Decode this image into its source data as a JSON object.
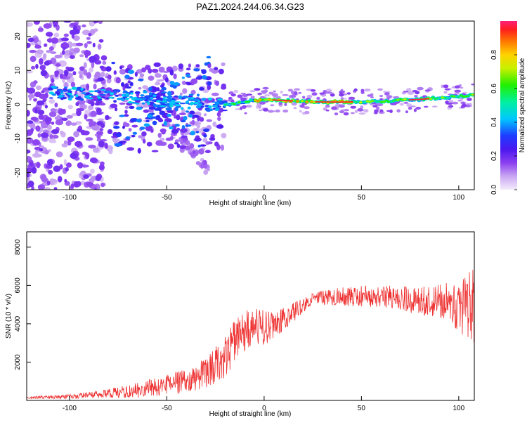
{
  "figure": {
    "title": "PAZ1.2024.244.06.34.G23"
  },
  "chart_data": [
    {
      "type": "heatmap",
      "title": "PAZ1.2024.244.06.34.G23",
      "xlabel": "Height of straight line (km)",
      "ylabel": "Frequency (Hz)",
      "xlim": [
        -122,
        108
      ],
      "ylim": [
        -25,
        24.5
      ],
      "xticks": [
        -100,
        -50,
        0,
        50,
        100
      ],
      "yticks": [
        -20,
        -10,
        0,
        10,
        20
      ],
      "colorbar": {
        "label": "Normalized spectral amplitude",
        "range": [
          0,
          1
        ],
        "ticks": [
          "0.0",
          "0.2",
          "0.4",
          "0.6",
          "0.8"
        ],
        "tick_values": [
          0,
          0.2,
          0.4,
          0.6,
          0.8
        ]
      },
      "ridge": {
        "description_points": [
          {
            "x": -105,
            "y": 3.5
          },
          {
            "x": -90,
            "y": 3
          },
          {
            "x": -75,
            "y": 2.5
          },
          {
            "x": -60,
            "y": 1.5
          },
          {
            "x": -50,
            "y": 1
          },
          {
            "x": -40,
            "y": 0.5
          },
          {
            "x": -30,
            "y": 0
          },
          {
            "x": -20,
            "y": 0
          },
          {
            "x": -10,
            "y": 0.8
          },
          {
            "x": 0,
            "y": 1.5
          },
          {
            "x": 10,
            "y": 1.2
          },
          {
            "x": 25,
            "y": 0.8
          },
          {
            "x": 40,
            "y": 0.7
          },
          {
            "x": 60,
            "y": 1.0
          },
          {
            "x": 80,
            "y": 1.5
          },
          {
            "x": 95,
            "y": 2.2
          },
          {
            "x": 108,
            "y": 2.8
          }
        ],
        "peak_amplitude": 0.98
      },
      "grid": false
    },
    {
      "type": "line",
      "xlabel": "Height of straight line (km)",
      "ylabel": "SNR (10 * v/v)",
      "xlim": [
        -122,
        108
      ],
      "ylim": [
        0,
        8800
      ],
      "xticks": [
        -100,
        -50,
        0,
        50,
        100
      ],
      "yticks": [
        2000,
        4000,
        6000,
        8000
      ],
      "series": [
        {
          "color": "#ee3333",
          "envelope": [
            {
              "x": -122,
              "mean": 150,
              "spread": 60
            },
            {
              "x": -100,
              "mean": 200,
              "spread": 120
            },
            {
              "x": -85,
              "mean": 300,
              "spread": 200
            },
            {
              "x": -70,
              "mean": 450,
              "spread": 350
            },
            {
              "x": -55,
              "mean": 700,
              "spread": 500
            },
            {
              "x": -40,
              "mean": 1000,
              "spread": 650
            },
            {
              "x": -30,
              "mean": 1400,
              "spread": 800
            },
            {
              "x": -20,
              "mean": 2400,
              "spread": 1200
            },
            {
              "x": -15,
              "mean": 3200,
              "spread": 1300
            },
            {
              "x": -10,
              "mean": 3600,
              "spread": 1100
            },
            {
              "x": -5,
              "mean": 3900,
              "spread": 1000
            },
            {
              "x": 0,
              "mean": 3800,
              "spread": 900
            },
            {
              "x": 5,
              "mean": 3900,
              "spread": 700
            },
            {
              "x": 15,
              "mean": 4600,
              "spread": 500
            },
            {
              "x": 25,
              "mean": 5300,
              "spread": 300
            },
            {
              "x": 35,
              "mean": 5400,
              "spread": 450
            },
            {
              "x": 50,
              "mean": 5450,
              "spread": 550
            },
            {
              "x": 65,
              "mean": 5400,
              "spread": 600
            },
            {
              "x": 80,
              "mean": 5200,
              "spread": 750
            },
            {
              "x": 90,
              "mean": 5200,
              "spread": 950
            },
            {
              "x": 100,
              "mean": 4800,
              "spread": 1300
            },
            {
              "x": 108,
              "mean": 5000,
              "spread": 2000
            }
          ]
        }
      ],
      "grid": false
    }
  ]
}
